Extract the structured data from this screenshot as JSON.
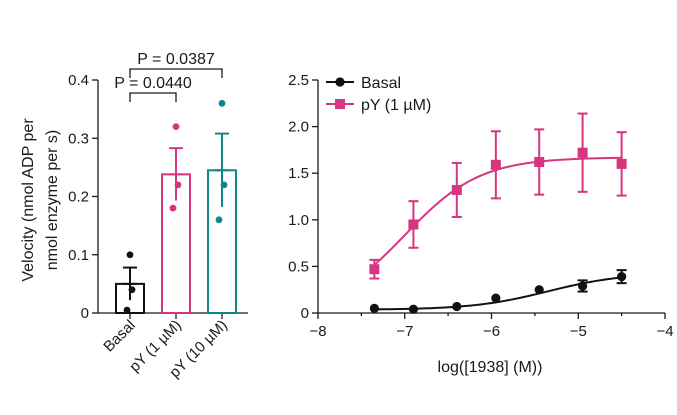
{
  "colors": {
    "basal": "#111111",
    "pY1": "#d6357f",
    "pY10": "#11868a",
    "axis": "#1a1a1a"
  },
  "chart_data": [
    {
      "type": "bar",
      "ylabel_line1": "Velocity (nmol ADP per",
      "ylabel_line2": "nmol enzyme per s)",
      "ylim": [
        0,
        0.4
      ],
      "yticks": [
        0,
        0.1,
        0.2,
        0.3,
        0.4
      ],
      "ytick_labels": [
        "0",
        "0.1",
        "0.2",
        "0.3",
        "0.4"
      ],
      "categories": [
        "Basal",
        "pY (1 µM)",
        "pY (10 µM)"
      ],
      "values": [
        0.05,
        0.238,
        0.245
      ],
      "errors": [
        0.028,
        0.045,
        0.063
      ],
      "points": [
        [
          0.1,
          0.04,
          0.005
        ],
        [
          0.32,
          0.22,
          0.18
        ],
        [
          0.36,
          0.22,
          0.16
        ]
      ],
      "bar_colors": [
        "#111111",
        "#d6357f",
        "#11868a"
      ],
      "comparisons": [
        {
          "from": 0,
          "to": 1,
          "label": "P = 0.0440"
        },
        {
          "from": 0,
          "to": 2,
          "label": "P = 0.0387"
        }
      ]
    },
    {
      "type": "line",
      "xlabel": "log([1938] (M))",
      "xlim": [
        -8,
        -4
      ],
      "ylim": [
        0,
        2.5
      ],
      "xticks": [
        -8,
        -7,
        -6,
        -5,
        -4
      ],
      "xtick_labels": [
        "−8",
        "−7",
        "−6",
        "−5",
        "−4"
      ],
      "yticks": [
        0,
        0.5,
        1.0,
        1.5,
        2.0,
        2.5
      ],
      "ytick_labels": [
        "0",
        "0.5",
        "1.0",
        "1.5",
        "2.0",
        "2.5"
      ],
      "series": [
        {
          "name": "Basal",
          "color": "#111111",
          "marker": "circle",
          "x": [
            -7.35,
            -6.9,
            -6.4,
            -5.95,
            -5.45,
            -4.95,
            -4.5
          ],
          "y": [
            0.05,
            0.04,
            0.07,
            0.16,
            0.25,
            0.29,
            0.39
          ],
          "err": [
            0.0,
            0.0,
            0.0,
            0.0,
            0.0,
            0.06,
            0.07
          ],
          "fit": {
            "bottom": 0.035,
            "top": 0.43,
            "logEC50": -5.35,
            "hill": 1.0
          }
        },
        {
          "name": "pY (1 µM)",
          "color": "#d6357f",
          "marker": "square",
          "x": [
            -7.35,
            -6.9,
            -6.4,
            -5.95,
            -5.45,
            -4.95,
            -4.5
          ],
          "y": [
            0.47,
            0.95,
            1.32,
            1.59,
            1.62,
            1.72,
            1.6
          ],
          "err": [
            0.1,
            0.25,
            0.29,
            0.36,
            0.35,
            0.42,
            0.34
          ],
          "fit": {
            "bottom": 0.0,
            "top": 1.67,
            "logEC50": -7.0,
            "hill": 1.0
          }
        }
      ]
    }
  ]
}
